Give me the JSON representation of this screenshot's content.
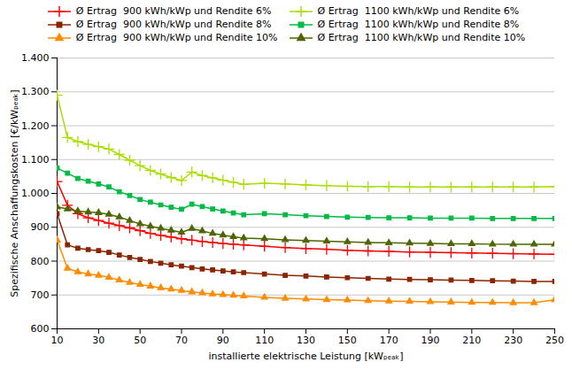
{
  "chart_data": {
    "type": "line",
    "xlabel": "installierte elektrische Leistung [kWₚₑₐₖ]",
    "ylabel": "Spezifische Anschaffungskosten [€/kWₚₑₐₖ]",
    "x": [
      10,
      15,
      20,
      25,
      30,
      35,
      40,
      45,
      50,
      55,
      60,
      65,
      70,
      75,
      80,
      85,
      90,
      95,
      100,
      110,
      120,
      130,
      140,
      150,
      160,
      170,
      180,
      190,
      200,
      210,
      220,
      230,
      240,
      250
    ],
    "series": [
      {
        "name": "Ø Ertrag  900 kWh/kWp und Rendite 6%",
        "color": "#ff0000",
        "marker": "plus",
        "values": [
          1035,
          965,
          940,
          928,
          920,
          912,
          905,
          898,
          890,
          882,
          876,
          871,
          866,
          862,
          858,
          855,
          852,
          850,
          848,
          844,
          840,
          837,
          835,
          832,
          830,
          829,
          827,
          826,
          825,
          824,
          823,
          822,
          821,
          820
        ]
      },
      {
        "name": "Ø Ertrag  900 kWh/kWp und Rendite 8%",
        "color": "#8B2500",
        "marker": "square",
        "values": [
          940,
          848,
          838,
          834,
          831,
          826,
          818,
          811,
          805,
          799,
          794,
          789,
          785,
          781,
          777,
          774,
          771,
          768,
          766,
          762,
          758,
          756,
          753,
          751,
          749,
          747,
          746,
          745,
          744,
          743,
          742,
          741,
          740,
          740
        ]
      },
      {
        "name": "Ø Ertrag  900 kWh/kWp und Rendite 10%",
        "color": "#ff8c00",
        "marker": "triangle",
        "values": [
          862,
          779,
          768,
          762,
          758,
          752,
          744,
          737,
          731,
          726,
          721,
          717,
          713,
          709,
          706,
          703,
          701,
          699,
          697,
          693,
          690,
          688,
          686,
          685,
          683,
          682,
          681,
          680,
          679,
          678,
          678,
          677,
          677,
          686
        ]
      },
      {
        "name": "Ø Ertrag  1100 kWh/kWp und Rendite 6%",
        "color": "#aadd00",
        "marker": "plus",
        "values": [
          1290,
          1165,
          1153,
          1145,
          1138,
          1131,
          1115,
          1098,
          1082,
          1068,
          1057,
          1047,
          1038,
          1063,
          1053,
          1046,
          1039,
          1033,
          1027,
          1030,
          1028,
          1025,
          1023,
          1021,
          1020,
          1020,
          1019,
          1019,
          1019,
          1019,
          1019,
          1019,
          1019,
          1020
        ]
      },
      {
        "name": "Ø Ertrag  1100 kWh/kWp und Rendite 8%",
        "color": "#00bb44",
        "marker": "square",
        "values": [
          1075,
          1060,
          1044,
          1036,
          1028,
          1019,
          1005,
          994,
          982,
          974,
          966,
          959,
          953,
          968,
          961,
          954,
          948,
          942,
          937,
          940,
          937,
          934,
          932,
          930,
          929,
          928,
          928,
          927,
          927,
          927,
          926,
          926,
          926,
          926
        ]
      },
      {
        "name": "Ø Ertrag  1100 kWh/kWp und Rendite 10%",
        "color": "#4d6600",
        "marker": "triangle",
        "values": [
          960,
          954,
          948,
          945,
          943,
          938,
          930,
          920,
          910,
          903,
          897,
          891,
          885,
          896,
          889,
          882,
          877,
          872,
          868,
          866,
          863,
          861,
          859,
          857,
          855,
          854,
          853,
          852,
          851,
          851,
          850,
          850,
          850,
          850
        ]
      }
    ],
    "xlim": [
      10,
      250
    ],
    "xticks": [
      10,
      30,
      50,
      70,
      90,
      110,
      130,
      150,
      170,
      190,
      210,
      230,
      250
    ],
    "ylim": [
      600,
      1400
    ],
    "yticks": [
      600,
      700,
      800,
      900,
      {
        "value": 1000,
        "label": "1.000"
      },
      {
        "value": 1100,
        "label": "1.100"
      },
      {
        "value": 1200,
        "label": "1.200"
      },
      {
        "value": 1300,
        "label": "1.300"
      },
      {
        "value": 1400,
        "label": "1.400"
      }
    ],
    "grid": "y",
    "legend": "top"
  }
}
